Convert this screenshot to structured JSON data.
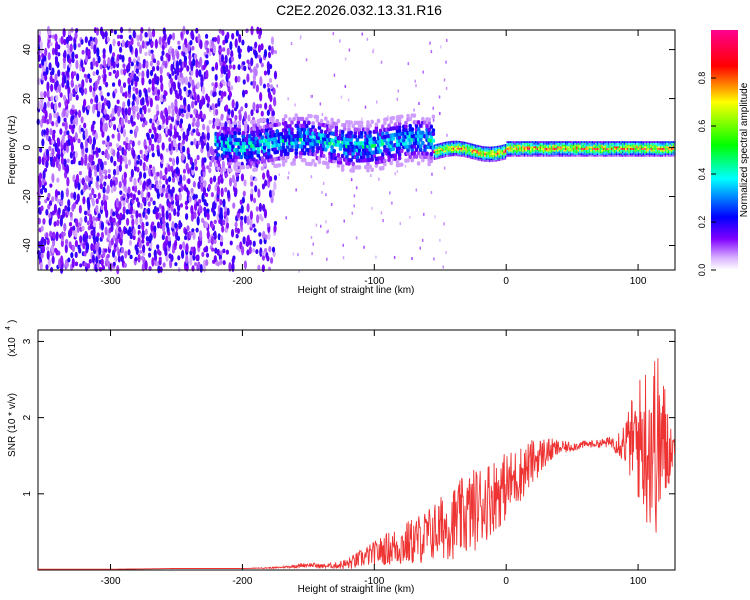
{
  "figure_title": "C2E2.2026.032.13.31.R16",
  "chart_data": [
    {
      "type": "heatmap",
      "title": "C2E2.2026.032.13.31.R16",
      "xlabel": "Height of straight line (km)",
      "ylabel": "Frequency (Hz)",
      "xlim": [
        -355,
        128
      ],
      "ylim": [
        -50,
        48
      ],
      "xticks": [
        -300,
        -200,
        -100,
        0,
        100
      ],
      "yticks": [
        -40,
        -20,
        0,
        20,
        40
      ],
      "colorbar": {
        "label": "Normalized spectral amplitude",
        "range": [
          0.0,
          1.0
        ],
        "ticks": [
          0.0,
          0.2,
          0.4,
          0.6,
          0.8
        ],
        "tick_labels": [
          "0.0",
          "0.2",
          "0.4",
          "0.6",
          "0.8"
        ],
        "colors": [
          "#ffffff",
          "#8000ff",
          "#0000ff",
          "#00ffff",
          "#00ff00",
          "#ffff00",
          "#ff0000",
          "#ff00a0"
        ]
      },
      "regions": [
        {
          "x_range": [
            -355,
            -175
          ],
          "pattern": "broadband noise",
          "amplitude_range": [
            0.05,
            0.2
          ]
        },
        {
          "x_range": [
            -220,
            -55
          ],
          "pattern": "widened spectral line",
          "center_hz": 2,
          "width_hz": 10,
          "amplitude_range": [
            0.2,
            0.5
          ]
        },
        {
          "x_range": [
            -55,
            128
          ],
          "pattern": "narrow spectral line",
          "center_hz": 0,
          "width_hz": 3,
          "amplitude_range": [
            0.5,
            1.0
          ]
        }
      ]
    },
    {
      "type": "line",
      "xlabel": "Height of straight line (km)",
      "ylabel": "SNR (10 * v/v)",
      "y_scale_label": "(x10",
      "y_scale_exp": "4",
      "series_color": "#ee3333",
      "xlim": [
        -355,
        128
      ],
      "ylim": [
        0,
        3.15
      ],
      "xticks": [
        -300,
        -200,
        -100,
        0,
        100
      ],
      "yticks": [
        1,
        2,
        3
      ],
      "series": [
        {
          "name": "SNR",
          "x": [
            -355,
            -300,
            -250,
            -200,
            -175,
            -160,
            -150,
            -140,
            -130,
            -120,
            -110,
            -100,
            -90,
            -80,
            -70,
            -60,
            -50,
            -40,
            -30,
            -20,
            -10,
            0,
            10,
            20,
            30,
            40,
            50,
            60,
            70,
            80,
            90,
            100,
            110,
            115,
            120,
            128
          ],
          "y": [
            0.01,
            0.01,
            0.02,
            0.02,
            0.03,
            0.05,
            0.07,
            0.05,
            0.06,
            0.08,
            0.15,
            0.22,
            0.28,
            0.32,
            0.38,
            0.45,
            0.55,
            0.62,
            0.72,
            0.85,
            0.98,
            1.1,
            1.25,
            1.42,
            1.55,
            1.6,
            1.62,
            1.65,
            1.66,
            1.68,
            1.68,
            1.7,
            1.7,
            1.65,
            1.62,
            1.6
          ],
          "noise": [
            0,
            0,
            0,
            0,
            0.01,
            0.02,
            0.03,
            0.03,
            0.04,
            0.08,
            0.12,
            0.16,
            0.22,
            0.28,
            0.32,
            0.36,
            0.42,
            0.48,
            0.55,
            0.55,
            0.5,
            0.45,
            0.38,
            0.3,
            0.2,
            0.1,
            0.06,
            0.05,
            0.05,
            0.08,
            0.3,
            0.8,
            1.3,
            1.2,
            0.9,
            0.05
          ]
        }
      ]
    }
  ]
}
